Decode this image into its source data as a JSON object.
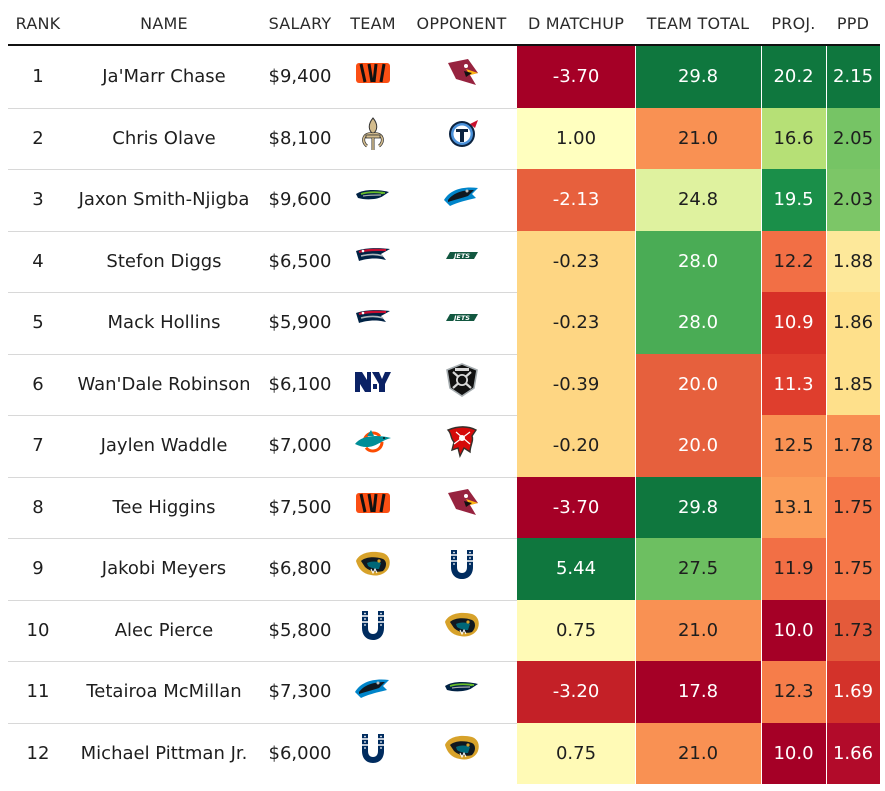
{
  "chart_data": {
    "type": "table",
    "columns": [
      "RANK",
      "NAME",
      "SALARY",
      "TEAM",
      "OPPONENT",
      "D MATCHUP",
      "TEAM TOTAL",
      "PROJ.",
      "PPD"
    ],
    "rows": [
      {
        "rank": "1",
        "name": "Ja'Marr Chase",
        "salary": "$9,400",
        "team": "bengals-logo",
        "opponent": "cardinals-logo",
        "d_matchup": "-3.70",
        "team_total": "29.8",
        "proj": "20.2",
        "ppd": "2.15"
      },
      {
        "rank": "2",
        "name": "Chris Olave",
        "salary": "$8,100",
        "team": "saints-logo",
        "opponent": "titans-logo",
        "d_matchup": "1.00",
        "team_total": "21.0",
        "proj": "16.6",
        "ppd": "2.05"
      },
      {
        "rank": "3",
        "name": "Jaxon Smith-Njigba",
        "salary": "$9,600",
        "team": "seahawks-logo",
        "opponent": "panthers-logo",
        "d_matchup": "-2.13",
        "team_total": "24.8",
        "proj": "19.5",
        "ppd": "2.03"
      },
      {
        "rank": "4",
        "name": "Stefon Diggs",
        "salary": "$6,500",
        "team": "patriots-logo",
        "opponent": "jets-logo",
        "d_matchup": "-0.23",
        "team_total": "28.0",
        "proj": "12.2",
        "ppd": "1.88"
      },
      {
        "rank": "5",
        "name": "Mack Hollins",
        "salary": "$5,900",
        "team": "patriots-logo",
        "opponent": "jets-logo",
        "d_matchup": "-0.23",
        "team_total": "28.0",
        "proj": "10.9",
        "ppd": "1.86"
      },
      {
        "rank": "6",
        "name": "Wan'Dale Robinson",
        "salary": "$6,100",
        "team": "giants-logo",
        "opponent": "raiders-logo",
        "d_matchup": "-0.39",
        "team_total": "20.0",
        "proj": "11.3",
        "ppd": "1.85"
      },
      {
        "rank": "7",
        "name": "Jaylen Waddle",
        "salary": "$7,000",
        "team": "dolphins-logo",
        "opponent": "buccaneers-logo",
        "d_matchup": "-0.20",
        "team_total": "20.0",
        "proj": "12.5",
        "ppd": "1.78"
      },
      {
        "rank": "8",
        "name": "Tee Higgins",
        "salary": "$7,500",
        "team": "bengals-logo",
        "opponent": "cardinals-logo",
        "d_matchup": "-3.70",
        "team_total": "29.8",
        "proj": "13.1",
        "ppd": "1.75"
      },
      {
        "rank": "9",
        "name": "Jakobi Meyers",
        "salary": "$6,800",
        "team": "jaguars-logo",
        "opponent": "colts-logo",
        "d_matchup": "5.44",
        "team_total": "27.5",
        "proj": "11.9",
        "ppd": "1.75"
      },
      {
        "rank": "10",
        "name": "Alec Pierce",
        "salary": "$5,800",
        "team": "colts-logo",
        "opponent": "jaguars-logo",
        "d_matchup": "0.75",
        "team_total": "21.0",
        "proj": "10.0",
        "ppd": "1.73"
      },
      {
        "rank": "11",
        "name": "Tetairoa McMillan",
        "salary": "$7,300",
        "team": "panthers-logo",
        "opponent": "seahawks-logo",
        "d_matchup": "-3.20",
        "team_total": "17.8",
        "proj": "12.3",
        "ppd": "1.69"
      },
      {
        "rank": "12",
        "name": "Michael Pittman Jr.",
        "salary": "$6,000",
        "team": "colts-logo",
        "opponent": "jaguars-logo",
        "d_matchup": "0.75",
        "team_total": "21.0",
        "proj": "10.0",
        "ppd": "1.66"
      }
    ],
    "heat_colors": {
      "d_matchup": [
        "#a50026",
        "#ffffbf",
        "#e7603d",
        "#fed683",
        "#fed683",
        "#fed683",
        "#fed683",
        "#a50026",
        "#0f773e",
        "#fffab6",
        "#c42027",
        "#fffab6"
      ],
      "team_total": [
        "#0f773e",
        "#f99153",
        "#dff29f",
        "#4aac55",
        "#4aac55",
        "#e6603d",
        "#e6603d",
        "#0f773e",
        "#6dbf61",
        "#f99153",
        "#a50026",
        "#f99153"
      ],
      "proj": [
        "#0f773e",
        "#b6e076",
        "#1a8f49",
        "#f26f45",
        "#d73027",
        "#df3e2d",
        "#f99153",
        "#fb9d59",
        "#f26f45",
        "#a50026",
        "#f67d4a",
        "#a50026"
      ],
      "ppd": [
        "#0f773e",
        "#76c465",
        "#7cc667",
        "#fde89a",
        "#fee08b",
        "#fee08b",
        "#f98e52",
        "#f57748",
        "#f57748",
        "#e45a3a",
        "#d3322a",
        "#b20b2a"
      ]
    },
    "light_text": {
      "d_matchup": [
        true,
        false,
        true,
        false,
        false,
        false,
        false,
        true,
        true,
        false,
        true,
        false
      ],
      "team_total": [
        true,
        false,
        false,
        true,
        true,
        true,
        true,
        true,
        false,
        false,
        true,
        false
      ],
      "proj": [
        true,
        false,
        true,
        false,
        true,
        true,
        false,
        false,
        false,
        true,
        false,
        true
      ],
      "ppd": [
        true,
        false,
        false,
        false,
        false,
        false,
        false,
        false,
        false,
        false,
        true,
        true
      ]
    }
  }
}
